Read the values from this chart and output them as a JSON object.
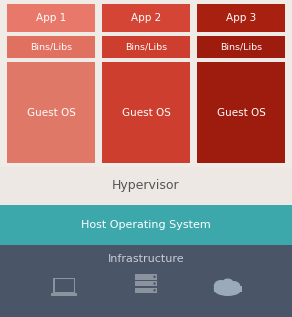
{
  "fig_width": 2.92,
  "fig_height": 3.17,
  "dpi": 100,
  "bg_color": "#f0ebe6",
  "columns": [
    {
      "label": "App 1",
      "color_app": "#e8796a",
      "color_bins": "#e07060",
      "color_os": "#e07868"
    },
    {
      "label": "App 2",
      "color_app": "#d44535",
      "color_bins": "#cd3e2e",
      "color_os": "#cd3e2e"
    },
    {
      "label": "App 3",
      "color_app": "#a82010",
      "color_bins": "#9e1c0e",
      "color_os": "#9e1c0e"
    }
  ],
  "col_bg": "#ffffff",
  "hypervisor_color": "#ede8e3",
  "hypervisor_text": "Hypervisor",
  "hypervisor_text_color": "#555555",
  "hos_color": "#3da8ac",
  "hos_text": "Host Operating System",
  "hos_text_color": "#ffffff",
  "infra_color": "#4a5568",
  "infra_text": "Infrastructure",
  "infra_text_color": "#c8cdd6",
  "text_color_light": "#ffffff",
  "font_size_app": 7.5,
  "font_size_bins": 6.8,
  "font_size_os": 7.5,
  "font_size_hyp": 9,
  "font_size_hos": 8,
  "font_size_infra": 8
}
